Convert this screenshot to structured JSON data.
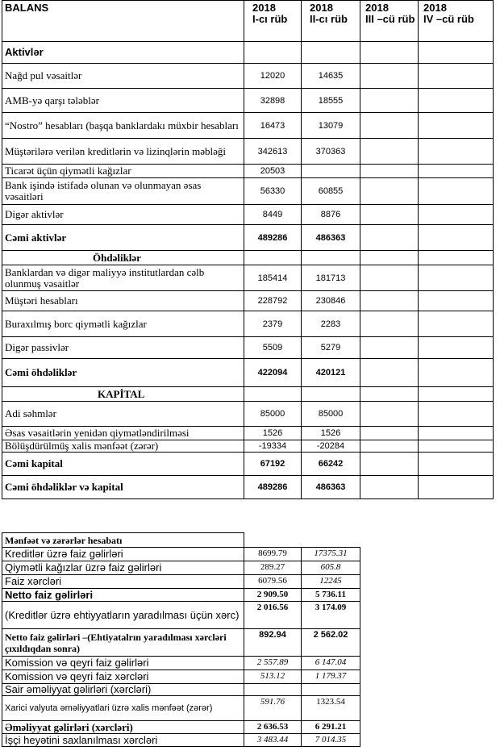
{
  "balance": {
    "header": {
      "label": "BALANS",
      "periods": [
        {
          "year": "2018",
          "period": "I-cı rüb"
        },
        {
          "year": "2018",
          "period": "II-cı rüb"
        },
        {
          "year": "2018",
          "period": "III –cü rüb"
        },
        {
          "year": "2018",
          "period": "IV –cü rüb"
        }
      ]
    },
    "rows": [
      {
        "label": "Aktivlər"
      },
      {
        "label": "Nağd pul vəsaitlər",
        "values": [
          "12020",
          "14635"
        ]
      },
      {
        "label": "AMB-yə qarşı tələblər",
        "values": [
          "32898",
          "18555"
        ]
      },
      {
        "label": "“Nostro” hesabları (başqa banklardakı müxbir hesabları",
        "values": [
          "16473",
          "13079"
        ]
      },
      {
        "label": "Müştərilərə verilən kreditlərin və lizinqlərin məbləği",
        "values": [
          "342613",
          "370363"
        ]
      },
      {
        "label": "Ticarət üçün qiymətli kağızlar",
        "values": [
          "20503"
        ]
      },
      {
        "label": "Bank işində istifadə olunan və olunmayan əsas vəsaitləri",
        "values": [
          "56330",
          "60855"
        ]
      },
      {
        "label": "Digər aktivlər",
        "values": [
          "8449",
          "8876"
        ]
      },
      {
        "label": "Cəmi aktivlər",
        "values": [
          "489286",
          "486363"
        ]
      },
      {
        "label": "Öhdəliklər"
      },
      {
        "label": "Banklardan və digər maliyyə institutlardan cəlb olunmuş vəsaitlər",
        "values": [
          "185414",
          "181713"
        ]
      },
      {
        "label": "Müştəri hesabları",
        "values": [
          "228792",
          "230846"
        ]
      },
      {
        "label": "Buraxılmış borc qiymətli kağızlar",
        "values": [
          "2379",
          "2283"
        ]
      },
      {
        "label": "Digər passivlər",
        "values": [
          "5509",
          "5279"
        ]
      },
      {
        "label": "Cəmi öhdəliklər",
        "values": [
          "422094",
          "420121"
        ]
      },
      {
        "label": "KAPİTAL"
      },
      {
        "label": "Adi səhmlər",
        "values": [
          "85000",
          "85000"
        ]
      },
      {
        "label": "Əsas vəsaitlərin yenidən qiymətləndirilməsi",
        "values": [
          "1526",
          "1526"
        ]
      },
      {
        "label": "Bölüşdürülmüş xalis mənfəət (zərər)",
        "values": [
          "-19334",
          "-20284"
        ]
      },
      {
        "label": "Cəmi kapital",
        "values": [
          "67192",
          "66242"
        ]
      },
      {
        "label": "Cəmi öhdəliklər və kapital",
        "values": [
          "489286",
          "486363"
        ]
      }
    ]
  },
  "income": {
    "title": "Mənfəət və zərərlər hesabatı",
    "rows": [
      {
        "label": "Kreditlər üzrə faiz gəlirləri",
        "values": [
          "8699.79",
          "17375.31"
        ]
      },
      {
        "label": "Qiymətli kağızlar üzrə faiz gəlirləri",
        "values": [
          "289.27",
          "605.8"
        ]
      },
      {
        "label": "Faiz xərcləri",
        "values": [
          "6079.56",
          "12245"
        ]
      },
      {
        "label": "Netto faiz gəlirləri",
        "values": [
          "2 909.50",
          "5 736.11"
        ]
      },
      {
        "label": "(Kreditlər üzrə ehtiyyatların yaradılması üçün xərc)",
        "values": [
          "2 016.56",
          "3 174.09"
        ]
      },
      {
        "label": "Netto faiz gəlirləri –(Ehtiyatalrın yaradılması xərcləri çıxıldıqdan sonra)",
        "values": [
          "892.94",
          "2 562.02"
        ]
      },
      {
        "label": "Komission və qeyri faiz gəlirləri",
        "values": [
          "2 557.89",
          "6 147.04"
        ]
      },
      {
        "label": "Komission və qeyri faiz xərcləri",
        "values": [
          "513.12",
          "1 179.37"
        ]
      },
      {
        "label": "Sair əməliyyat gəlirləri (xərcləri)"
      },
      {
        "label": "Xarici valyuta əməliyyatlari üzrə xalis mənfəət (zərər)",
        "values": [
          "591.76",
          "1323.54"
        ]
      },
      {
        "label": "Əməliyyat gəlirləri (xərcləri)",
        "values": [
          "2 636.53",
          "6 291.21"
        ]
      },
      {
        "label": "İşçi heyətini saxlanılması xərcləri",
        "values": [
          "3 483.44",
          "7 014.35"
        ]
      }
    ]
  }
}
